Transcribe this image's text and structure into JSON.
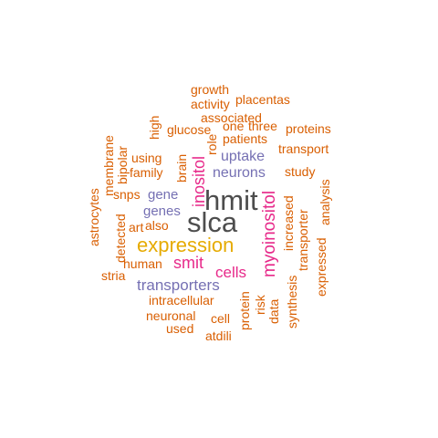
{
  "palette": {
    "dark": "#4d4d4d",
    "orange": "#d95f02",
    "purple": "#7570b3",
    "magenta": "#e7298a",
    "gold": "#e6ab02"
  },
  "words": [
    {
      "text": "slca",
      "color": "dark"
    },
    {
      "text": "hmit",
      "color": "dark"
    },
    {
      "text": "expression",
      "color": "gold"
    },
    {
      "text": "myoinositol",
      "color": "magenta"
    },
    {
      "text": "inositol",
      "color": "magenta"
    },
    {
      "text": "smit",
      "color": "magenta"
    },
    {
      "text": "cells",
      "color": "magenta"
    },
    {
      "text": "transporters",
      "color": "purple"
    },
    {
      "text": "neurons",
      "color": "purple"
    },
    {
      "text": "uptake",
      "color": "purple"
    },
    {
      "text": "gene",
      "color": "purple"
    },
    {
      "text": "genes",
      "color": "purple"
    },
    {
      "text": "growth",
      "color": "orange"
    },
    {
      "text": "activity",
      "color": "orange"
    },
    {
      "text": "placentas",
      "color": "orange"
    },
    {
      "text": "associated",
      "color": "orange"
    },
    {
      "text": "one",
      "color": "orange"
    },
    {
      "text": "three",
      "color": "orange"
    },
    {
      "text": "proteins",
      "color": "orange"
    },
    {
      "text": "glucose",
      "color": "orange"
    },
    {
      "text": "patients",
      "color": "orange"
    },
    {
      "text": "high",
      "color": "orange"
    },
    {
      "text": "role",
      "color": "orange"
    },
    {
      "text": "transport",
      "color": "orange"
    },
    {
      "text": "using",
      "color": "orange"
    },
    {
      "text": "brain",
      "color": "orange"
    },
    {
      "text": "study",
      "color": "orange"
    },
    {
      "text": "membrane",
      "color": "orange"
    },
    {
      "text": "bipolar",
      "color": "orange"
    },
    {
      "text": "family",
      "color": "orange"
    },
    {
      "text": "snps",
      "color": "orange"
    },
    {
      "text": "astrocytes",
      "color": "orange"
    },
    {
      "text": "detected",
      "color": "orange"
    },
    {
      "text": "art",
      "color": "orange"
    },
    {
      "text": "also",
      "color": "orange"
    },
    {
      "text": "increased",
      "color": "orange"
    },
    {
      "text": "analysis",
      "color": "orange"
    },
    {
      "text": "transporter",
      "color": "orange"
    },
    {
      "text": "expressed",
      "color": "orange"
    },
    {
      "text": "human",
      "color": "orange"
    },
    {
      "text": "stria",
      "color": "orange"
    },
    {
      "text": "intracellular",
      "color": "orange"
    },
    {
      "text": "risk",
      "color": "orange"
    },
    {
      "text": "data",
      "color": "orange"
    },
    {
      "text": "synthesis",
      "color": "orange"
    },
    {
      "text": "protein",
      "color": "orange"
    },
    {
      "text": "neuronal",
      "color": "orange"
    },
    {
      "text": "cell",
      "color": "orange"
    },
    {
      "text": "used",
      "color": "orange"
    },
    {
      "text": "atdili",
      "color": "orange"
    }
  ]
}
